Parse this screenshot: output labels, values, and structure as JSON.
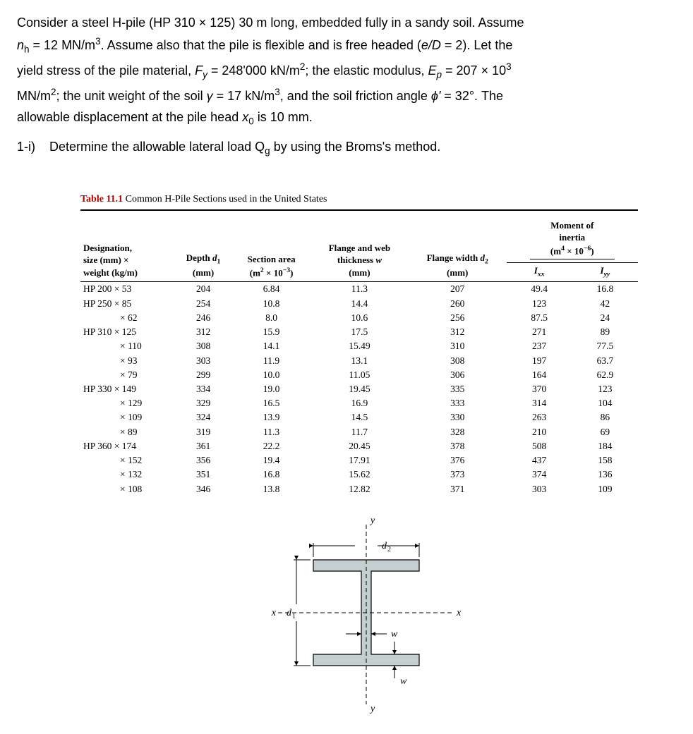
{
  "problem": {
    "line1_a": "Consider a steel H-pile (HP 310 × 125) 30 m long, embedded fully in a sandy soil. Assume",
    "line2_pre": "n",
    "line2_sub": "h",
    "line2_mid": "  = 12 MN/m",
    "line2_sup": "3",
    "line2_post": ". Assume also that the pile is flexible and is free headed (",
    "line2_elD": "e/D",
    "line2_eq": " = 2). Let the",
    "line3_a": "yield stress of the pile material, ",
    "line3_Fy": "F",
    "line3_Fy_sub": "y",
    "line3_b": " = 248'000 kN/m",
    "line3_sup2": "2",
    "line3_c": "; the elastic modulus, ",
    "line3_Ep": "E",
    "line3_Ep_sub": "p",
    "line3_d": " = 207 × 10",
    "line3_sup3": "3",
    "line4_a": "MN/m",
    "line4_sup2": "2",
    "line4_b": "; the unit weight of the soil ",
    "line4_gamma": "γ",
    "line4_c": " = 17 kN/m",
    "line4_sup3": "3",
    "line4_d": ", and the soil friction angle ",
    "line4_phi": "ϕ'",
    "line4_e": " = 32°. The",
    "line5_a": "allowable displacement at the pile head ",
    "line5_x0": "x",
    "line5_x0_sub": "0",
    "line5_b": " is 10 mm."
  },
  "part": {
    "label": "1-i)",
    "text_a": "Determine the allowable lateral load Q",
    "text_sub": "g",
    "text_b": " by using the Broms's method."
  },
  "table": {
    "title_label": "Table 11.1",
    "title_text": " Common H-Pile Sections used in the United States"
  },
  "headers": {
    "designation_l1": "Designation,",
    "designation_l2": "size (mm) ×",
    "designation_l3": "weight (kg/m)",
    "depth_l1": "Depth ",
    "depth_sym": "d",
    "depth_sub": "1",
    "depth_l2": "(mm)",
    "area_l1": "Section area",
    "area_l2": "(m",
    "area_sup": "2",
    "area_l3": " × 10",
    "area_sup2": "−3",
    "area_l4": ")",
    "thick_l1": "Flange and web",
    "thick_l2": "thickness ",
    "thick_sym": "w",
    "thick_l3": "(mm)",
    "width_l1": "Flange width ",
    "width_sym": "d",
    "width_sub": "2",
    "width_l2": "(mm)",
    "moi_l1": "Moment of",
    "moi_l2": "inertia",
    "moi_l3a": "(m",
    "moi_sup4": "4",
    "moi_l3b": " × 10",
    "moi_supm6": "−6",
    "moi_l3c": ")",
    "Ixx": "I",
    "Ixx_sub": "xx",
    "Iyy": "I",
    "Iyy_sub": "yy"
  },
  "rows": [
    {
      "des": "HP 200 × 53",
      "d1": "204",
      "area": "6.84",
      "w": "11.3",
      "d2": "207",
      "Ixx": "49.4",
      "Iyy": "16.8"
    },
    {
      "des": "HP 250 × 85",
      "d1": "254",
      "area": "10.8",
      "w": "14.4",
      "d2": "260",
      "Ixx": "123",
      "Iyy": "42"
    },
    {
      "des": "× 62",
      "d1": "246",
      "area": "8.0",
      "w": "10.6",
      "d2": "256",
      "Ixx": "87.5",
      "Iyy": "24"
    },
    {
      "des": "HP 310 × 125",
      "d1": "312",
      "area": "15.9",
      "w": "17.5",
      "d2": "312",
      "Ixx": "271",
      "Iyy": "89"
    },
    {
      "des": "× 110",
      "d1": "308",
      "area": "14.1",
      "w": "15.49",
      "d2": "310",
      "Ixx": "237",
      "Iyy": "77.5"
    },
    {
      "des": "× 93",
      "d1": "303",
      "area": "11.9",
      "w": "13.1",
      "d2": "308",
      "Ixx": "197",
      "Iyy": "63.7"
    },
    {
      "des": "× 79",
      "d1": "299",
      "area": "10.0",
      "w": "11.05",
      "d2": "306",
      "Ixx": "164",
      "Iyy": "62.9"
    },
    {
      "des": "HP 330 × 149",
      "d1": "334",
      "area": "19.0",
      "w": "19.45",
      "d2": "335",
      "Ixx": "370",
      "Iyy": "123"
    },
    {
      "des": "× 129",
      "d1": "329",
      "area": "16.5",
      "w": "16.9",
      "d2": "333",
      "Ixx": "314",
      "Iyy": "104"
    },
    {
      "des": "× 109",
      "d1": "324",
      "area": "13.9",
      "w": "14.5",
      "d2": "330",
      "Ixx": "263",
      "Iyy": "86"
    },
    {
      "des": "× 89",
      "d1": "319",
      "area": "11.3",
      "w": "11.7",
      "d2": "328",
      "Ixx": "210",
      "Iyy": "69"
    },
    {
      "des": "HP 360 × 174",
      "d1": "361",
      "area": "22.2",
      "w": "20.45",
      "d2": "378",
      "Ixx": "508",
      "Iyy": "184"
    },
    {
      "des": "× 152",
      "d1": "356",
      "area": "19.4",
      "w": "17.91",
      "d2": "376",
      "Ixx": "437",
      "Iyy": "158"
    },
    {
      "des": "× 132",
      "d1": "351",
      "area": "16.8",
      "w": "15.62",
      "d2": "373",
      "Ixx": "374",
      "Iyy": "136"
    },
    {
      "des": "× 108",
      "d1": "346",
      "area": "13.8",
      "w": "12.82",
      "d2": "371",
      "Ixx": "303",
      "Iyy": "109"
    }
  ],
  "diagram": {
    "labels": {
      "y": "y",
      "x": "x",
      "d1": "d",
      "d1_sub": "1",
      "d2": "d",
      "d2_sub": "2",
      "w": "w"
    },
    "colors": {
      "fill": "#c4d0cf",
      "stroke": "#000000",
      "dash": "#000000",
      "text": "#000000"
    },
    "stroke_width": 1.2,
    "dash_pattern": "6,4"
  }
}
